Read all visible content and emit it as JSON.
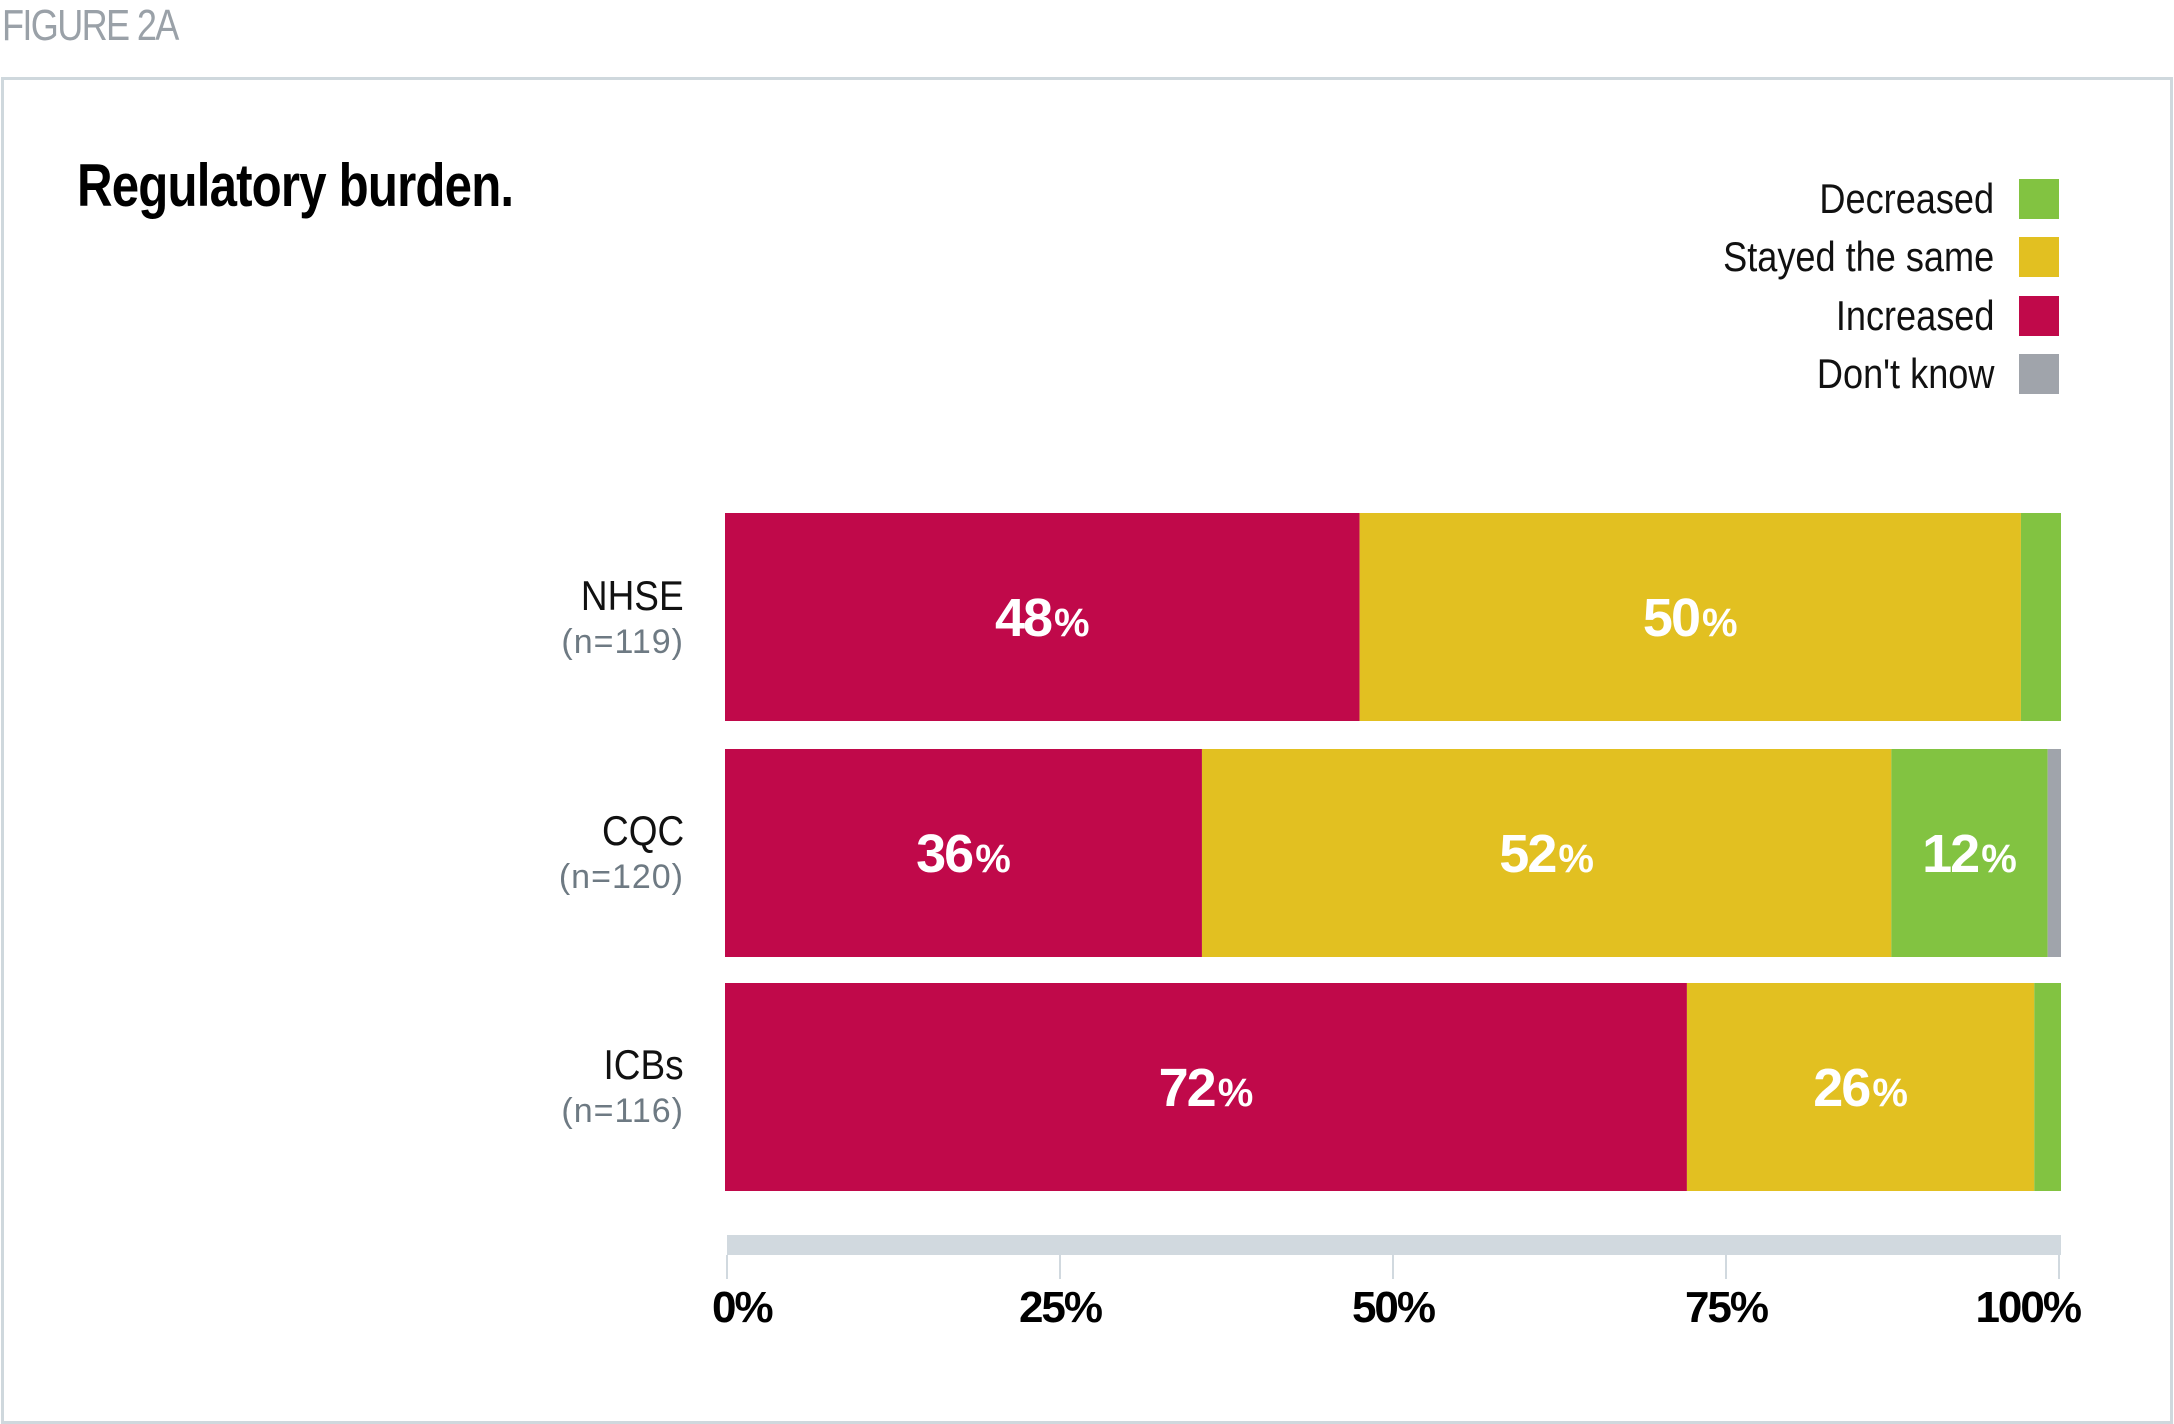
{
  "figure_label": "FIGURE 2A",
  "chart_data": {
    "type": "bar",
    "orientation": "horizontal",
    "stacked": true,
    "title": "Regulatory burden.",
    "categories": [
      "NHSE",
      "CQC",
      "ICBs"
    ],
    "sample_sizes": [
      "(n=119)",
      "(n=120)",
      "(n=116)"
    ],
    "series": [
      {
        "name": "Increased",
        "color": "#c0094a",
        "values": [
          47.5,
          35.7,
          72
        ],
        "labels": [
          "48",
          "36",
          "72"
        ]
      },
      {
        "name": "Stayed the same",
        "color": "#e2c021",
        "values": [
          49.5,
          51.6,
          26
        ],
        "labels": [
          "50",
          "52",
          "26"
        ]
      },
      {
        "name": "Decreased",
        "color": "#82c341",
        "values": [
          3,
          11.7,
          2
        ],
        "labels": [
          "",
          "12",
          ""
        ]
      },
      {
        "name": "Don't know",
        "color": "#a0a4ab",
        "values": [
          0,
          1,
          0
        ],
        "labels": [
          "",
          "",
          ""
        ]
      }
    ],
    "legend": {
      "placement": "top-right",
      "entries": [
        {
          "label": "Decreased",
          "color": "#82c341"
        },
        {
          "label": "Stayed the same",
          "color": "#e2c021"
        },
        {
          "label": "Increased",
          "color": "#c0094a"
        },
        {
          "label": "Don't know",
          "color": "#a0a4ab"
        }
      ]
    },
    "xaxis": {
      "ticks": [
        0,
        25,
        50,
        75,
        100
      ],
      "tick_labels": [
        "0%",
        "25%",
        "50%",
        "75%",
        "100%"
      ],
      "range": [
        0,
        100
      ]
    },
    "xlabel": "",
    "ylabel": "",
    "percent_symbol": "%",
    "grid": false
  },
  "colors": {
    "axis_bar": "#d1d9df",
    "frame": "#cfd8dd",
    "figure_label": "#9aa1a8",
    "n_label": "#6e7a83"
  }
}
